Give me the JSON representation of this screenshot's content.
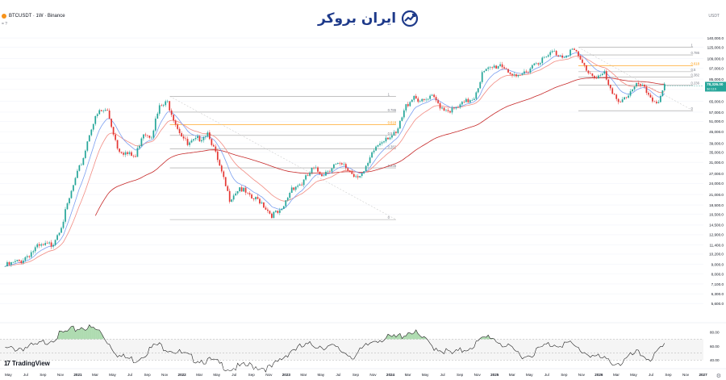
{
  "header": {
    "symbol": "BTCUSDT · 1W · Binance",
    "sub": "= ?",
    "currency": "USDT"
  },
  "logo": {
    "text": "ایران بروکر"
  },
  "footer": {
    "brand": "TradingView"
  },
  "colors": {
    "up": "#26a69a",
    "down": "#e53935",
    "ema_fast": "#7b9ff0",
    "ema_mid": "#f28b82",
    "ema_slow": "#c62828",
    "rsi": "#222222",
    "rsi_fill": "#4caf50",
    "fib_618": "#ff9800",
    "last_price_bg": "#26a69a"
  },
  "chart_data": {
    "type": "candlestick",
    "symbol": "BTCUSDT",
    "interval": "1W",
    "exchange": "Binance",
    "y_scale": "log",
    "y_ticks": [
      "140,000.0",
      "125,000.0",
      "109,000.0",
      "97,000.0",
      "85,000.0",
      "75,000.0",
      "65,000.0",
      "57,000.0",
      "51,000.0",
      "45,000.0",
      "39,000.0",
      "35,000.0",
      "31,000.0",
      "27,000.0",
      "24,000.0",
      "21,000.0",
      "18,500.0",
      "16,500.0",
      "14,500.0",
      "12,900.0",
      "11,400.0",
      "10,200.0",
      "9,000.0",
      "8,000.0",
      "7,100.0",
      "6,300.0",
      "5,600.0"
    ],
    "y_tick_values": [
      140000,
      125000,
      109000,
      97000,
      85000,
      75000,
      65000,
      57000,
      51000,
      45000,
      39000,
      35000,
      31000,
      27000,
      24000,
      21000,
      18500,
      16500,
      14500,
      12900,
      11400,
      10200,
      9000,
      8000,
      7100,
      6300,
      5600
    ],
    "x_ticks": [
      "May",
      "Jul",
      "Sep",
      "Nov",
      "2021",
      "Mar",
      "May",
      "Jul",
      "Sep",
      "Nov",
      "2022",
      "Mar",
      "May",
      "Jul",
      "Sep",
      "Nov",
      "2023",
      "Mar",
      "May",
      "Jul",
      "Sep",
      "Nov",
      "2024",
      "Mar",
      "May",
      "Jul",
      "Sep",
      "Nov",
      "2025",
      "Mar",
      "May",
      "Jul",
      "Sep",
      "Nov",
      "2026",
      "Mar",
      "May",
      "Jul",
      "Sep",
      "Nov",
      "2027"
    ],
    "last_price": {
      "value": "78,326.00",
      "countdown": "3d 11h"
    },
    "fib_levels_left": [
      {
        "ratio": "1",
        "price": 69000
      },
      {
        "ratio": "0.786",
        "price": 57000
      },
      {
        "ratio": "0.618",
        "price": 49000
      },
      {
        "ratio": "0.5",
        "price": 43000
      },
      {
        "ratio": "0.382",
        "price": 36500
      },
      {
        "ratio": "0.236",
        "price": 29000
      },
      {
        "ratio": "0",
        "price": 15500
      }
    ],
    "fib_levels_right": [
      {
        "ratio": "1",
        "price": 125000
      },
      {
        "ratio": "0.786",
        "price": 114000
      },
      {
        "ratio": "0.618",
        "price": 100000
      },
      {
        "ratio": "0.5",
        "price": 93000
      },
      {
        "ratio": "0.382",
        "price": 87000
      },
      {
        "ratio": "0.236",
        "price": 79000
      },
      {
        "ratio": "0",
        "price": 58000
      }
    ],
    "price_path": [
      [
        2020.3,
        8800
      ],
      [
        2020.45,
        9400
      ],
      [
        2020.6,
        11000
      ],
      [
        2020.75,
        11500
      ],
      [
        2020.85,
        15000
      ],
      [
        2020.95,
        23000
      ],
      [
        2021.05,
        33000
      ],
      [
        2021.12,
        47000
      ],
      [
        2021.2,
        57000
      ],
      [
        2021.28,
        58000
      ],
      [
        2021.38,
        37000
      ],
      [
        2021.48,
        34000
      ],
      [
        2021.55,
        33000
      ],
      [
        2021.62,
        45000
      ],
      [
        2021.7,
        43000
      ],
      [
        2021.78,
        60000
      ],
      [
        2021.86,
        64000
      ],
      [
        2021.95,
        48000
      ],
      [
        2022.05,
        38000
      ],
      [
        2022.15,
        41000
      ],
      [
        2022.25,
        45000
      ],
      [
        2022.35,
        30000
      ],
      [
        2022.45,
        20000
      ],
      [
        2022.55,
        23000
      ],
      [
        2022.65,
        20000
      ],
      [
        2022.75,
        19500
      ],
      [
        2022.85,
        16500
      ],
      [
        2022.95,
        16800
      ],
      [
        2023.05,
        23000
      ],
      [
        2023.15,
        24000
      ],
      [
        2023.25,
        28500
      ],
      [
        2023.35,
        27000
      ],
      [
        2023.45,
        30000
      ],
      [
        2023.55,
        29500
      ],
      [
        2023.65,
        26500
      ],
      [
        2023.75,
        27500
      ],
      [
        2023.85,
        37000
      ],
      [
        2023.95,
        42500
      ],
      [
        2024.05,
        43000
      ],
      [
        2024.15,
        62000
      ],
      [
        2024.22,
        70000
      ],
      [
        2024.3,
        64000
      ],
      [
        2024.4,
        68000
      ],
      [
        2024.5,
        60000
      ],
      [
        2024.6,
        58000
      ],
      [
        2024.7,
        63000
      ],
      [
        2024.8,
        69000
      ],
      [
        2024.88,
        91000
      ],
      [
        2024.95,
        96000
      ],
      [
        2025.05,
        102000
      ],
      [
        2025.12,
        96000
      ],
      [
        2025.2,
        84000
      ],
      [
        2025.3,
        94000
      ],
      [
        2025.4,
        106000
      ],
      [
        2025.48,
        108000
      ],
      [
        2025.55,
        118000
      ],
      [
        2025.65,
        113000
      ],
      [
        2025.75,
        122000
      ],
      [
        2025.8,
        110000
      ],
      [
        2025.88,
        95000
      ],
      [
        2025.95,
        88000
      ],
      [
        2026.05,
        90000
      ],
      [
        2026.12,
        70000
      ],
      [
        2026.2,
        66000
      ],
      [
        2026.3,
        72000
      ],
      [
        2026.38,
        80000
      ],
      [
        2026.45,
        73000
      ],
      [
        2026.52,
        66000
      ],
      [
        2026.58,
        65000
      ],
      [
        2026.63,
        78326
      ]
    ],
    "rsi": {
      "levels": [
        "80.00",
        "60.00",
        "40.00"
      ],
      "level_values": [
        80,
        60,
        40
      ],
      "overbought": 70,
      "oversold": 30,
      "path": [
        [
          2020.3,
          55
        ],
        [
          2020.6,
          60
        ],
        [
          2020.85,
          78
        ],
        [
          2021.05,
          88
        ],
        [
          2021.2,
          82
        ],
        [
          2021.4,
          45
        ],
        [
          2021.55,
          40
        ],
        [
          2021.75,
          62
        ],
        [
          2021.9,
          55
        ],
        [
          2022.1,
          42
        ],
        [
          2022.3,
          38
        ],
        [
          2022.45,
          28
        ],
        [
          2022.65,
          32
        ],
        [
          2022.85,
          28
        ],
        [
          2023.05,
          55
        ],
        [
          2023.25,
          62
        ],
        [
          2023.45,
          58
        ],
        [
          2023.65,
          45
        ],
        [
          2023.85,
          70
        ],
        [
          2024.05,
          72
        ],
        [
          2024.2,
          82
        ],
        [
          2024.4,
          60
        ],
        [
          2024.6,
          48
        ],
        [
          2024.8,
          62
        ],
        [
          2024.95,
          75
        ],
        [
          2025.15,
          55
        ],
        [
          2025.3,
          45
        ],
        [
          2025.5,
          62
        ],
        [
          2025.7,
          64
        ],
        [
          2025.85,
          52
        ],
        [
          2026.05,
          40
        ],
        [
          2026.2,
          35
        ],
        [
          2026.35,
          50
        ],
        [
          2026.5,
          42
        ],
        [
          2026.63,
          60
        ]
      ]
    }
  }
}
